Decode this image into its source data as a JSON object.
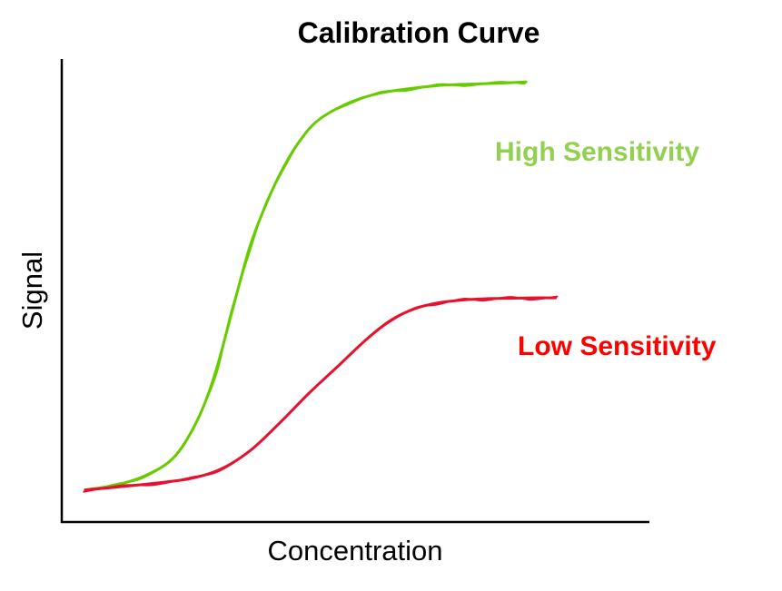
{
  "chart_data": {
    "type": "line",
    "title": "Calibration Curve",
    "xlabel": "Concentration",
    "ylabel": "Signal",
    "xlim": [
      0,
      100
    ],
    "ylim": [
      0,
      100
    ],
    "grid": false,
    "ticks": false,
    "series": [
      {
        "name": "High Sensitivity",
        "color": "#66cc00",
        "label_color": "#92d050",
        "x": [
          4,
          9,
          14,
          19,
          23,
          26,
          29,
          32,
          35,
          38,
          41,
          44,
          49,
          54,
          59,
          64,
          69,
          74,
          79
        ],
        "y": [
          7,
          8,
          10,
          14,
          22,
          32,
          46,
          60,
          70,
          78,
          84,
          88,
          91.5,
          93.5,
          94.5,
          95.2,
          95.5,
          95.7,
          96
        ]
      },
      {
        "name": "Low Sensitivity",
        "color": "#e8112d",
        "label_color": "#ff0000",
        "x": [
          4,
          10,
          16,
          22,
          27,
          32,
          37,
          42,
          47,
          52,
          56,
          60,
          64,
          68,
          72,
          76,
          80,
          84
        ],
        "y": [
          7,
          7.7,
          8.5,
          9.5,
          11.5,
          15.5,
          21.5,
          28,
          34,
          40,
          44,
          46.5,
          47.8,
          48.4,
          48.7,
          48.8,
          48.9,
          48.9
        ]
      }
    ]
  }
}
